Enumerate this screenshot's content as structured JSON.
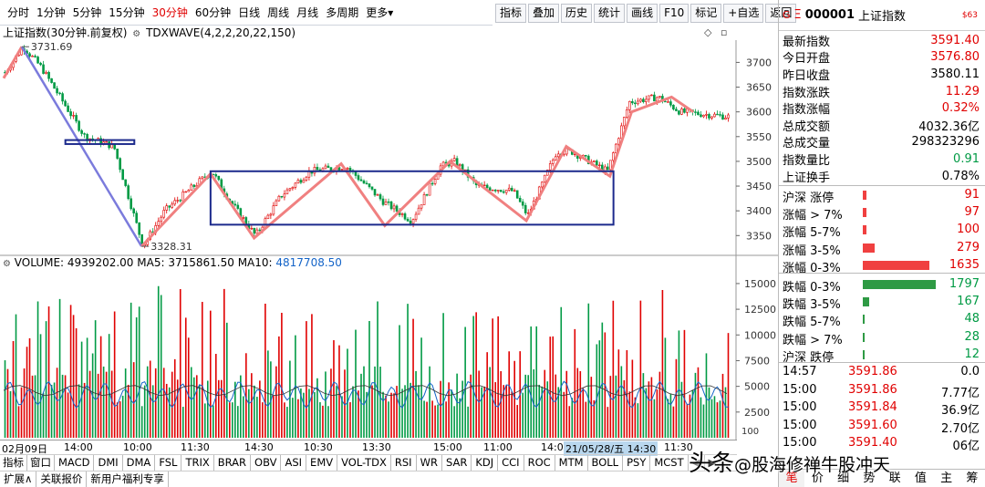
{
  "tabs": [
    "分时",
    "1分钟",
    "5分钟",
    "15分钟",
    "30分钟",
    "60分钟",
    "日线",
    "周线",
    "月线",
    "多周期",
    "更多"
  ],
  "tabs_more_caret": "▾",
  "tools": [
    "指标",
    "叠加",
    "历史",
    "统计",
    "画线",
    "F10",
    "标记",
    "+自选",
    "返回"
  ],
  "chart_title": "上证指数(30分钟.前复权)",
  "wave_label": "TDXWAVE(4,2,2,20,22,150)",
  "volume_header": {
    "name": "VOLUME",
    "value": "4939202.00",
    "ma5_label": "MA5",
    "ma5": "3715861.50",
    "ma10_label": "MA10",
    "ma10": "4817708.50"
  },
  "y_axis": [
    "3700",
    "3650",
    "3600",
    "3550",
    "3500",
    "3450",
    "3400",
    "3350"
  ],
  "vol_axis": [
    "15000",
    "12500",
    "10000",
    "7500",
    "5000",
    "2500"
  ],
  "vol_unit": "100",
  "annotations": {
    "high": "3731.69",
    "low": "3328.31"
  },
  "time_axis": [
    "02月09日",
    "14:00",
    "10:00",
    "11:30",
    "14:30",
    "10:30",
    "13:30",
    "15:00",
    "11:00",
    "14:00",
    "21/05/28/五 14:30",
    "11:30"
  ],
  "indicator_tabs": [
    "指标",
    "窗口",
    "MACD",
    "DMI",
    "DMA",
    "FSL",
    "TRIX",
    "BRAR",
    "OBV",
    "ASI",
    "EMV",
    "VOL-TDX",
    "RSI",
    "WR",
    "SAR",
    "KDJ",
    "CCI",
    "ROC",
    "MTM",
    "BOLL",
    "PSY",
    "MCST",
    "◀",
    "▶"
  ],
  "bottom_tabs": [
    "扩展∧",
    "关联报价",
    "新用户福利专享"
  ],
  "colors": {
    "up": "#e00000",
    "down": "#009a44",
    "wave": "#f08080",
    "box": "#1c2a8c",
    "downtrend": "#7b7bdc",
    "ma": "#1464c8"
  },
  "right_panel": {
    "flag": "G",
    "icon": "Ξ",
    "code": "000001",
    "name": "上证指数",
    "badge": "$63",
    "quotes": [
      {
        "label": "最新指数",
        "value": "3591.40",
        "color": "red"
      },
      {
        "label": "今日开盘",
        "value": "3576.80",
        "color": "red"
      },
      {
        "label": "昨日收盘",
        "value": "3580.11",
        "color": "black"
      },
      {
        "label": "指数涨跌",
        "value": "11.29",
        "color": "red"
      },
      {
        "label": "指数涨幅",
        "value": "0.32%",
        "color": "red"
      },
      {
        "label": "总成交额",
        "value": "4032.36亿",
        "color": "black"
      },
      {
        "label": "总成交量",
        "value": "298323296",
        "color": "black"
      },
      {
        "label": "指数量比",
        "value": "0.91",
        "color": "green"
      },
      {
        "label": "上证换手",
        "value": "0.78%",
        "color": "black"
      }
    ],
    "distribution": [
      {
        "label": "沪深 涨停",
        "count": "91",
        "color": "red",
        "share": 0.05
      },
      {
        "label": "涨幅 > 7%",
        "count": "97",
        "color": "red",
        "share": 0.05
      },
      {
        "label": "涨幅 5-7%",
        "count": "100",
        "color": "red",
        "share": 0.05
      },
      {
        "label": "涨幅 3-5%",
        "count": "279",
        "color": "red",
        "share": 0.16
      },
      {
        "label": "涨幅 0-3%",
        "count": "1635",
        "color": "red",
        "share": 0.91
      },
      {
        "label": "跌幅 0-3%",
        "count": "1797",
        "color": "green",
        "share": 1.0
      },
      {
        "label": "跌幅 3-5%",
        "count": "167",
        "color": "green",
        "share": 0.09
      },
      {
        "label": "跌幅 5-7%",
        "count": "48",
        "color": "green",
        "share": 0.03
      },
      {
        "label": "跌幅 > 7%",
        "count": "28",
        "color": "green",
        "share": 0.02
      },
      {
        "label": "沪深 跌停",
        "count": "12",
        "color": "green",
        "share": 0.01
      }
    ],
    "ticks": [
      {
        "time": "14:57",
        "price": "3591.86",
        "vol": "0.0",
        "pcolor": "red"
      },
      {
        "time": "15:00",
        "price": "3591.86",
        "vol": "7.77亿",
        "pcolor": "red"
      },
      {
        "time": "15:00",
        "price": "3591.84",
        "vol": "36.9亿",
        "pcolor": "red"
      },
      {
        "time": "15:00",
        "price": "3591.60",
        "vol": "2.70亿",
        "pcolor": "red"
      },
      {
        "time": "15:00",
        "price": "3591.40",
        "vol": "06亿",
        "pcolor": "red"
      }
    ],
    "footer_tabs": [
      "笔",
      "价",
      "细",
      "势",
      "联",
      "值",
      "主",
      "筹"
    ]
  },
  "watermark": {
    "prefix": "头条",
    "handle": "@股海修禅牛股冲天"
  }
}
